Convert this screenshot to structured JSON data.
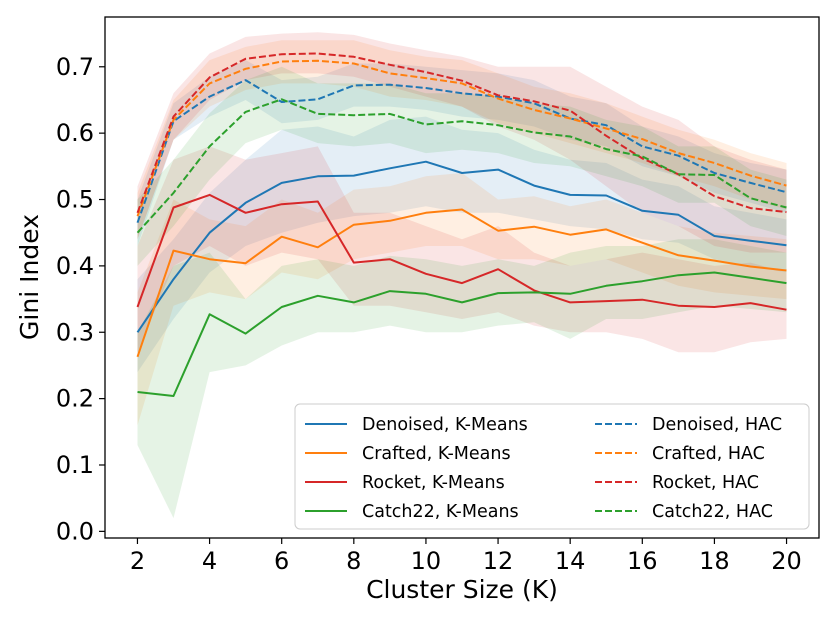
{
  "chart_data": {
    "type": "line",
    "title": "",
    "xlabel": "Cluster Size (K)",
    "ylabel": "Gini Index",
    "xlim": [
      1.1,
      20.9
    ],
    "ylim": [
      -0.01,
      0.775
    ],
    "grid": false,
    "legend_placement": "lower-right",
    "x": [
      2,
      3,
      4,
      5,
      6,
      7,
      8,
      9,
      10,
      11,
      12,
      13,
      14,
      15,
      16,
      17,
      18,
      19,
      20
    ],
    "xticks": [
      2,
      4,
      6,
      8,
      10,
      12,
      14,
      16,
      18,
      20
    ],
    "xtick_labels": [
      "2",
      "4",
      "6",
      "8",
      "10",
      "12",
      "14",
      "16",
      "18",
      "20"
    ],
    "yticks": [
      0.0,
      0.1,
      0.2,
      0.3,
      0.4,
      0.5,
      0.6,
      0.7
    ],
    "ytick_labels": [
      "0.0",
      "0.1",
      "0.2",
      "0.3",
      "0.4",
      "0.5",
      "0.6",
      "0.7"
    ],
    "series": [
      {
        "name": "Denoised, K-Means",
        "color": "#1f77b4",
        "dash": "solid",
        "values": [
          0.3,
          0.38,
          0.45,
          0.495,
          0.525,
          0.535,
          0.536,
          0.547,
          0.557,
          0.54,
          0.545,
          0.521,
          0.507,
          0.506,
          0.483,
          0.477,
          0.445,
          0.438,
          0.431
        ],
        "lower": [
          0.24,
          0.32,
          0.39,
          0.43,
          0.45,
          0.465,
          0.475,
          0.48,
          0.49,
          0.48,
          0.48,
          0.47,
          0.46,
          0.455,
          0.44,
          0.435,
          0.41,
          0.4,
          0.39
        ],
        "upper": [
          0.38,
          0.44,
          0.51,
          0.56,
          0.605,
          0.61,
          0.595,
          0.62,
          0.625,
          0.605,
          0.6,
          0.575,
          0.56,
          0.555,
          0.53,
          0.52,
          0.49,
          0.48,
          0.47
        ]
      },
      {
        "name": "Crafted, K-Means",
        "color": "#ff7f0e",
        "dash": "solid",
        "values": [
          0.263,
          0.423,
          0.41,
          0.404,
          0.444,
          0.428,
          0.462,
          0.468,
          0.48,
          0.485,
          0.453,
          0.459,
          0.447,
          0.455,
          0.435,
          0.416,
          0.408,
          0.399,
          0.393
        ],
        "lower": [
          0.16,
          0.34,
          0.36,
          0.35,
          0.39,
          0.38,
          0.41,
          0.42,
          0.43,
          0.43,
          0.41,
          0.41,
          0.4,
          0.41,
          0.39,
          0.37,
          0.36,
          0.355,
          0.35
        ],
        "upper": [
          0.36,
          0.5,
          0.47,
          0.46,
          0.5,
          0.48,
          0.515,
          0.52,
          0.535,
          0.54,
          0.5,
          0.505,
          0.49,
          0.5,
          0.48,
          0.46,
          0.45,
          0.445,
          0.44
        ]
      },
      {
        "name": "Rocket, K-Means",
        "color": "#d62728",
        "dash": "solid",
        "values": [
          0.338,
          0.488,
          0.507,
          0.48,
          0.493,
          0.497,
          0.405,
          0.41,
          0.388,
          0.374,
          0.395,
          0.363,
          0.345,
          0.347,
          0.349,
          0.34,
          0.338,
          0.344,
          0.334
        ],
        "lower": [
          0.27,
          0.4,
          0.43,
          0.4,
          0.42,
          0.41,
          0.34,
          0.34,
          0.33,
          0.32,
          0.33,
          0.31,
          0.3,
          0.3,
          0.29,
          0.27,
          0.27,
          0.285,
          0.29
        ],
        "upper": [
          0.43,
          0.56,
          0.58,
          0.56,
          0.57,
          0.58,
          0.48,
          0.48,
          0.46,
          0.44,
          0.46,
          0.42,
          0.4,
          0.41,
          0.42,
          0.41,
          0.4,
          0.405,
          0.39
        ]
      },
      {
        "name": "Catch22, K-Means",
        "color": "#2ca02c",
        "dash": "solid",
        "values": [
          0.21,
          0.204,
          0.327,
          0.298,
          0.338,
          0.355,
          0.345,
          0.362,
          0.358,
          0.345,
          0.359,
          0.36,
          0.358,
          0.37,
          0.377,
          0.386,
          0.39,
          0.382,
          0.374
        ],
        "lower": [
          0.13,
          0.02,
          0.24,
          0.25,
          0.28,
          0.3,
          0.3,
          0.31,
          0.3,
          0.3,
          0.31,
          0.315,
          0.29,
          0.32,
          0.32,
          0.33,
          0.34,
          0.335,
          0.33
        ],
        "upper": [
          0.3,
          0.4,
          0.42,
          0.35,
          0.4,
          0.41,
          0.4,
          0.415,
          0.41,
          0.4,
          0.41,
          0.4,
          0.42,
          0.43,
          0.43,
          0.44,
          0.44,
          0.43,
          0.42
        ]
      },
      {
        "name": "Denoised, HAC",
        "color": "#1f77b4",
        "dash": "dashed",
        "values": [
          0.465,
          0.618,
          0.655,
          0.68,
          0.647,
          0.651,
          0.672,
          0.673,
          0.668,
          0.66,
          0.655,
          0.645,
          0.622,
          0.612,
          0.58,
          0.566,
          0.54,
          0.525,
          0.511
        ],
        "lower": [
          0.43,
          0.59,
          0.625,
          0.65,
          0.615,
          0.62,
          0.64,
          0.64,
          0.635,
          0.625,
          0.62,
          0.61,
          0.59,
          0.58,
          0.55,
          0.535,
          0.51,
          0.495,
          0.48
        ],
        "upper": [
          0.5,
          0.645,
          0.685,
          0.71,
          0.68,
          0.685,
          0.705,
          0.705,
          0.7,
          0.695,
          0.69,
          0.68,
          0.655,
          0.645,
          0.61,
          0.595,
          0.57,
          0.555,
          0.545
        ]
      },
      {
        "name": "Crafted, HAC",
        "color": "#ff7f0e",
        "dash": "dashed",
        "values": [
          0.475,
          0.62,
          0.675,
          0.697,
          0.708,
          0.709,
          0.705,
          0.69,
          0.683,
          0.675,
          0.652,
          0.635,
          0.622,
          0.607,
          0.591,
          0.57,
          0.555,
          0.536,
          0.521
        ],
        "lower": [
          0.44,
          0.59,
          0.64,
          0.665,
          0.675,
          0.675,
          0.67,
          0.655,
          0.65,
          0.64,
          0.615,
          0.6,
          0.585,
          0.57,
          0.555,
          0.535,
          0.52,
          0.5,
          0.485
        ],
        "upper": [
          0.51,
          0.65,
          0.71,
          0.73,
          0.74,
          0.74,
          0.74,
          0.725,
          0.715,
          0.71,
          0.69,
          0.67,
          0.66,
          0.645,
          0.625,
          0.605,
          0.59,
          0.57,
          0.555
        ]
      },
      {
        "name": "Rocket, HAC",
        "color": "#d62728",
        "dash": "dashed",
        "values": [
          0.48,
          0.625,
          0.684,
          0.712,
          0.719,
          0.72,
          0.715,
          0.703,
          0.692,
          0.679,
          0.657,
          0.648,
          0.634,
          0.596,
          0.562,
          0.538,
          0.505,
          0.487,
          0.481
        ],
        "lower": [
          0.44,
          0.59,
          0.65,
          0.68,
          0.69,
          0.69,
          0.685,
          0.67,
          0.655,
          0.64,
          0.61,
          0.59,
          0.56,
          0.52,
          0.48,
          0.46,
          0.43,
          0.42,
          0.42
        ],
        "upper": [
          0.52,
          0.66,
          0.72,
          0.745,
          0.75,
          0.752,
          0.748,
          0.735,
          0.725,
          0.715,
          0.7,
          0.7,
          0.7,
          0.67,
          0.64,
          0.62,
          0.58,
          0.56,
          0.545
        ]
      },
      {
        "name": "Catch22, HAC",
        "color": "#2ca02c",
        "dash": "dashed",
        "values": [
          0.45,
          0.51,
          0.58,
          0.632,
          0.651,
          0.629,
          0.627,
          0.629,
          0.613,
          0.618,
          0.612,
          0.601,
          0.595,
          0.576,
          0.565,
          0.538,
          0.537,
          0.502,
          0.488
        ],
        "lower": [
          0.4,
          0.46,
          0.53,
          0.585,
          0.605,
          0.585,
          0.58,
          0.585,
          0.57,
          0.575,
          0.57,
          0.555,
          0.55,
          0.535,
          0.52,
          0.495,
          0.495,
          0.46,
          0.445
        ],
        "upper": [
          0.5,
          0.56,
          0.63,
          0.68,
          0.7,
          0.675,
          0.675,
          0.675,
          0.66,
          0.66,
          0.655,
          0.645,
          0.64,
          0.62,
          0.61,
          0.58,
          0.58,
          0.545,
          0.53
        ]
      }
    ]
  }
}
